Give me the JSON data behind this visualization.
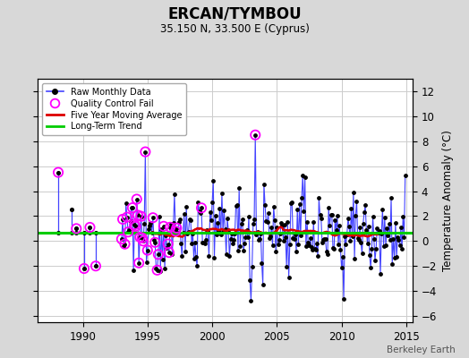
{
  "title": "ERCAN/TYMBOU",
  "subtitle": "35.150 N, 33.500 E (Cyprus)",
  "ylabel": "Temperature Anomaly (°C)",
  "watermark": "Berkeley Earth",
  "xlim": [
    1986.5,
    2015.5
  ],
  "ylim": [
    -6.5,
    13.0
  ],
  "yticks": [
    -6,
    -4,
    -2,
    0,
    2,
    4,
    6,
    8,
    10,
    12
  ],
  "xticks": [
    1990,
    1995,
    2000,
    2005,
    2010,
    2015
  ],
  "bg_color": "#d8d8d8",
  "plot_bg_color": "#ffffff",
  "raw_line_color": "#4444ff",
  "raw_dot_color": "#000000",
  "qc_fail_color": "#ff00ff",
  "moving_avg_color": "#dd0000",
  "trend_color": "#00cc00",
  "long_term_trend_value": 0.65,
  "seed": 12345
}
